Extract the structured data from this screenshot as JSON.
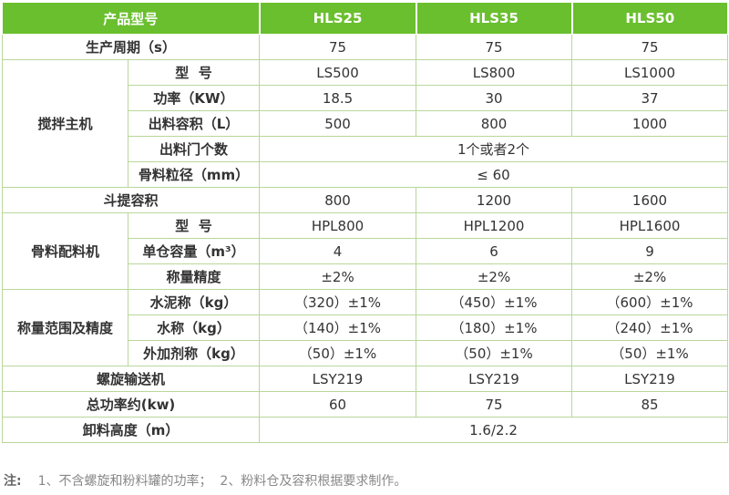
{
  "header": {
    "label": "产品型号",
    "models": [
      "HLS25",
      "HLS35",
      "HLS50"
    ]
  },
  "rows": {
    "cycle": {
      "label": "生产周期（s）",
      "values": [
        "75",
        "75",
        "75"
      ]
    },
    "mixer": {
      "group": "搅拌主机",
      "model": {
        "label": "型  号",
        "values": [
          "LS500",
          "LS800",
          "LS1000"
        ]
      },
      "power": {
        "label": "功率（KW）",
        "values": [
          "18.5",
          "30",
          "37"
        ]
      },
      "capacity": {
        "label": "出料容积（L）",
        "values": [
          "500",
          "800",
          "1000"
        ]
      },
      "doors": {
        "label": "出料门个数",
        "value": "1个或者2个"
      },
      "aggregate": {
        "label": "骨料粒径（mm）",
        "value": "≤ 60"
      }
    },
    "hopper": {
      "label": "斗提容积",
      "values": [
        "800",
        "1200",
        "1600"
      ]
    },
    "batcher": {
      "group": "骨料配料机",
      "model": {
        "label": "型  号",
        "values": [
          "HPL800",
          "HPL1200",
          "HPL1600"
        ]
      },
      "bin": {
        "label": "单仓容量（m³）",
        "values": [
          "4",
          "6",
          "9"
        ]
      },
      "accuracy": {
        "label": "称量精度",
        "values": [
          "±2%",
          "±2%",
          "±2%"
        ]
      }
    },
    "weighing": {
      "group": "称量范围及精度",
      "cement": {
        "label": "水泥称（kg）",
        "values": [
          "（320）±1%",
          "（450）±1%",
          "（600）±1%"
        ]
      },
      "water": {
        "label": "水称（kg）",
        "values": [
          "（140）±1%",
          "（180）±1%",
          "（240）±1%"
        ]
      },
      "additive": {
        "label": "外加剂称（kg）",
        "values": [
          "（50）±1%",
          "（50）±1%",
          "（50）±1%"
        ]
      }
    },
    "conveyor": {
      "label": "螺旋输送机",
      "values": [
        "LSY219",
        "LSY219",
        "LSY219"
      ]
    },
    "total_power": {
      "label": "总功率约(kw)",
      "values": [
        "60",
        "75",
        "85"
      ]
    },
    "discharge": {
      "label": "卸料高度（m）",
      "value": "1.6/2.2"
    }
  },
  "note": {
    "label": "注:",
    "text": "1、不含螺旋和粉料罐的功率；  2、粉料仓及容积根据要求制作。"
  },
  "colors": {
    "header_bg": "#6abf2e",
    "border": "#b9d79a"
  }
}
